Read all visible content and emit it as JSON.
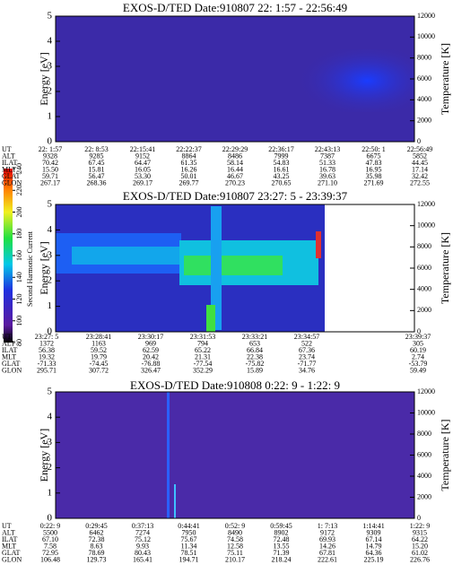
{
  "chart_data": [
    {
      "type": "heatmap",
      "title": "EXOS-D/TED  Date:910807  22: 1:57 - 22:56:49",
      "ylabel": "Energy [eV]",
      "ylim": [
        0,
        5
      ],
      "yticks": [
        0,
        1,
        2,
        3,
        4,
        5
      ],
      "y2label": "Temperature [K]",
      "y2lim": [
        0,
        12000
      ],
      "y2ticks": [
        0,
        2000,
        4000,
        6000,
        8000,
        10000,
        12000
      ],
      "rows": [
        {
          "label": "UT",
          "values": [
            "22: 1:57",
            "22: 8:53",
            "22:15:41",
            "22:22:37",
            "22:29:29",
            "22:36:17",
            "22:43:13",
            "22:50: 1",
            "22:56:49"
          ]
        },
        {
          "label": "ALT",
          "values": [
            "9328",
            "9285",
            "9152",
            "8864",
            "8486",
            "7999",
            "7387",
            "6675",
            "5852"
          ]
        },
        {
          "label": "ILAT",
          "values": [
            "70.42",
            "67.45",
            "64.47",
            "61.35",
            "58.14",
            "54.83",
            "51.33",
            "47.83",
            "44.45"
          ]
        },
        {
          "label": "MLT",
          "values": [
            "15.50",
            "15.81",
            "16.05",
            "16.26",
            "16.44",
            "16.61",
            "16.78",
            "16.95",
            "17.14"
          ]
        },
        {
          "label": "GLAT",
          "values": [
            "59.71",
            "56.47",
            "53.30",
            "50.01",
            "46.67",
            "43.25",
            "39.63",
            "35.98",
            "32.42"
          ]
        },
        {
          "label": "GLON",
          "values": [
            "267.17",
            "268.36",
            "269.17",
            "269.77",
            "270.23",
            "270.65",
            "271.10",
            "271.69",
            "272.55"
          ]
        }
      ]
    },
    {
      "type": "heatmap",
      "title": "EXOS-D/TED  Date:910807  23:27: 5 - 23:39:37",
      "ylabel": "Energy [eV]",
      "ylim": [
        0,
        5
      ],
      "yticks": [
        0,
        1,
        2,
        3,
        4,
        5
      ],
      "y2label": "Temperature [K]",
      "y2lim": [
        0,
        12000
      ],
      "y2ticks": [
        0,
        2000,
        4000,
        6000,
        8000,
        10000,
        12000
      ],
      "colorbar": {
        "label": "Second Harmonic Current",
        "lim": [
          80,
          240
        ],
        "ticks": [
          80,
          100,
          120,
          140,
          160,
          180,
          200,
          220,
          240
        ]
      },
      "rows": [
        {
          "label": "UT",
          "values": [
            "23:27: 5",
            "23:28:41",
            "23:30:17",
            "23:31:53",
            "23:33:21",
            "23:34:57",
            "23:39:37"
          ]
        },
        {
          "label": "ALT",
          "values": [
            "1372",
            "1163",
            "969",
            "794",
            "653",
            "522",
            "305"
          ]
        },
        {
          "label": "ILAT",
          "values": [
            "56.38",
            "59.52",
            "62.59",
            "65.22",
            "66.84",
            "67.36",
            "60.19"
          ]
        },
        {
          "label": "MLT",
          "values": [
            "19.32",
            "19.79",
            "20.42",
            "21.31",
            "22.38",
            "23.74",
            "2.74"
          ]
        },
        {
          "label": "GLAT",
          "values": [
            "-71.33",
            "-74.45",
            "-76.88",
            "-77.54",
            "-75.82",
            "-71.77",
            "-53.79"
          ]
        },
        {
          "label": "GLON",
          "values": [
            "295.71",
            "307.72",
            "326.47",
            "352.29",
            "15.89",
            "34.76",
            "59.49"
          ]
        }
      ]
    },
    {
      "type": "heatmap",
      "title": "EXOS-D/TED  Date:910808  0:22: 9 - 1:22: 9",
      "ylabel": "Energy [eV]",
      "ylim": [
        0,
        5
      ],
      "yticks": [
        0,
        1,
        2,
        3,
        4,
        5
      ],
      "y2label": "Temperature [K]",
      "y2lim": [
        0,
        12000
      ],
      "y2ticks": [
        0,
        2000,
        4000,
        6000,
        8000,
        10000,
        12000
      ],
      "rows": [
        {
          "label": "UT",
          "values": [
            "0:22: 9",
            "0:29:45",
            "0:37:13",
            "0:44:41",
            "0:52: 9",
            "0:59:45",
            "1: 7:13",
            "1:14:41",
            "1:22: 9"
          ]
        },
        {
          "label": "ALT",
          "values": [
            "5500",
            "6462",
            "7274",
            "7950",
            "8490",
            "8902",
            "9172",
            "9309",
            "9315"
          ]
        },
        {
          "label": "ILAT",
          "values": [
            "67.10",
            "72.38",
            "75.12",
            "75.67",
            "74.58",
            "72.48",
            "69.93",
            "67.14",
            "64.22"
          ]
        },
        {
          "label": "MLT",
          "values": [
            "7.58",
            "8.63",
            "9.93",
            "11.34",
            "12.58",
            "13.55",
            "14.26",
            "14.79",
            "15.20"
          ]
        },
        {
          "label": "GLAT",
          "values": [
            "72.95",
            "78.69",
            "80.43",
            "78.51",
            "75.11",
            "71.39",
            "67.81",
            "64.36",
            "61.02"
          ]
        },
        {
          "label": "GLON",
          "values": [
            "106.48",
            "129.73",
            "165.41",
            "194.71",
            "210.17",
            "218.24",
            "222.61",
            "225.19",
            "226.76"
          ]
        }
      ]
    }
  ]
}
